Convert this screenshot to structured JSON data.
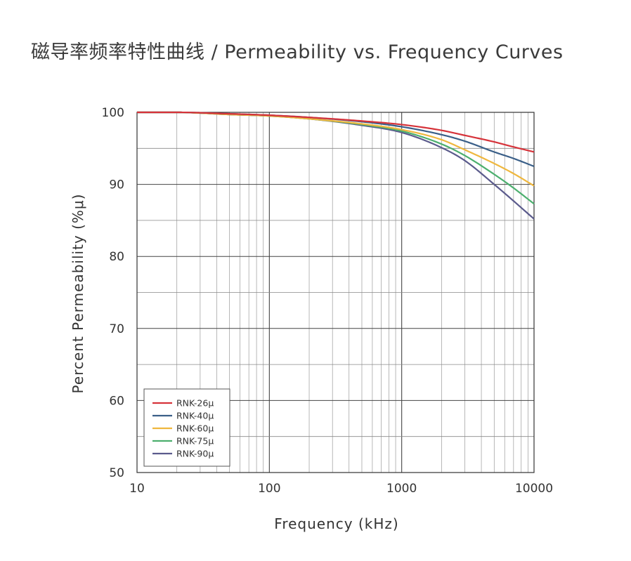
{
  "chart_data": {
    "type": "line",
    "title": "磁导率频率特性曲线 / Permeability vs. Frequency Curves",
    "xlabel": "Frequency (kHz)",
    "ylabel": "Percent Permeability (%μ)",
    "xscale": "log",
    "xlim": [
      10,
      10000
    ],
    "ylim": [
      50,
      100
    ],
    "xticks": [
      "10",
      "100",
      "1000",
      "10000"
    ],
    "yticks": [
      "50",
      "60",
      "70",
      "80",
      "90",
      "100"
    ],
    "grid": true,
    "legend_position": "bottom-left",
    "x": [
      10,
      20,
      50,
      100,
      200,
      500,
      1000,
      2000,
      3000,
      5000,
      7000,
      10000
    ],
    "series": [
      {
        "name": "RNK-26μ",
        "color": "#d6333a",
        "values": [
          100,
          100,
          99.8,
          99.6,
          99.3,
          98.8,
          98.3,
          97.5,
          96.8,
          95.9,
          95.2,
          94.5
        ]
      },
      {
        "name": "RNK-40μ",
        "color": "#3a5f88",
        "values": [
          100,
          100,
          99.8,
          99.6,
          99.3,
          98.7,
          98.0,
          96.9,
          96.0,
          94.5,
          93.6,
          92.5
        ]
      },
      {
        "name": "RNK-60μ",
        "color": "#efb73e",
        "values": [
          100,
          100,
          99.7,
          99.5,
          99.1,
          98.4,
          97.6,
          96.2,
          94.8,
          92.9,
          91.5,
          89.8
        ]
      },
      {
        "name": "RNK-75μ",
        "color": "#4caf6e",
        "values": [
          100,
          100,
          99.7,
          99.5,
          99.1,
          98.3,
          97.4,
          95.6,
          94.0,
          91.4,
          89.5,
          87.3
        ]
      },
      {
        "name": "RNK-90μ",
        "color": "#5b5b8c",
        "values": [
          100,
          100,
          99.7,
          99.5,
          99.1,
          98.2,
          97.2,
          95.1,
          93.3,
          90.0,
          87.7,
          85.2
        ]
      }
    ]
  }
}
